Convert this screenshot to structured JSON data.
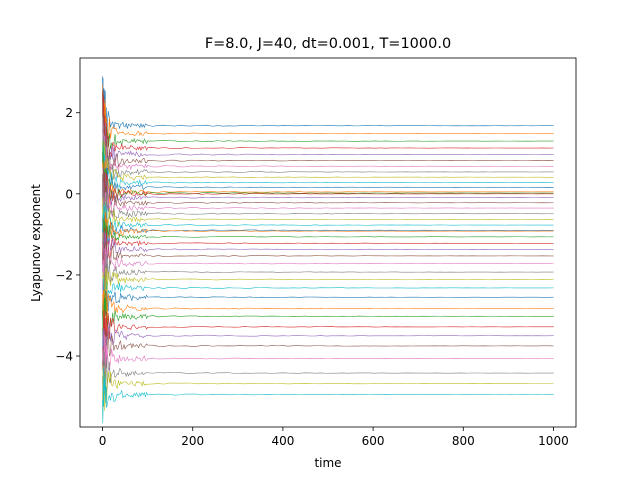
{
  "chart_data": {
    "type": "line",
    "title": "F=8.0, J=40, dt=0.001, T=1000.0",
    "xlabel": "time",
    "ylabel": "Lyapunov exponent",
    "xlim": [
      -50,
      1050
    ],
    "ylim": [
      -5.75,
      3.35
    ],
    "xticks": [
      0,
      200,
      400,
      600,
      800,
      1000
    ],
    "yticks": [
      -4,
      -2,
      0,
      2
    ],
    "xtick_labels": [
      "0",
      "200",
      "400",
      "600",
      "800",
      "1000"
    ],
    "ytick_labels": [
      "−4",
      "−2",
      "0",
      "2"
    ],
    "grid": false,
    "legend": "none",
    "colors": [
      "#1f77b4",
      "#ff7f0e",
      "#2ca02c",
      "#d62728",
      "#9467bd",
      "#8c564b",
      "#e377c2",
      "#7f7f7f",
      "#bcbd22",
      "#17becf"
    ],
    "transient": {
      "t_start": 0,
      "t_end": 100,
      "peak_high": 2.9,
      "peak_low": -5.3
    },
    "series_final_values": [
      1.68,
      1.49,
      1.3,
      1.13,
      0.97,
      0.82,
      0.68,
      0.54,
      0.41,
      0.28,
      0.16,
      0.05,
      0.02,
      0.0,
      -0.09,
      -0.22,
      -0.35,
      -0.49,
      -0.63,
      -0.77,
      -0.9,
      -0.92,
      -1.06,
      -1.22,
      -1.37,
      -1.53,
      -1.72,
      -1.93,
      -2.11,
      -2.32,
      -2.55,
      -2.83,
      -3.02,
      -3.28,
      -3.5,
      -3.75,
      -4.06,
      -4.42,
      -4.68,
      -4.95
    ]
  }
}
